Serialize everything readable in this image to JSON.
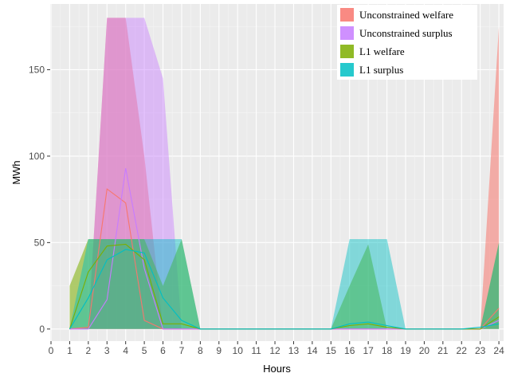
{
  "chart_data": {
    "type": "area",
    "xlabel": "Hours",
    "ylabel": "MWh",
    "xlim": [
      0,
      24
    ],
    "ylim": [
      -7,
      188
    ],
    "x_ticks": [
      0,
      1,
      2,
      3,
      4,
      5,
      6,
      7,
      8,
      9,
      10,
      11,
      12,
      13,
      14,
      15,
      16,
      17,
      18,
      19,
      20,
      21,
      22,
      23,
      24
    ],
    "y_ticks": [
      0,
      50,
      100,
      150
    ],
    "grid": true,
    "legend_position": "top-right",
    "series": [
      {
        "name": "Unconstrained welfare",
        "color": "#f8766d",
        "x": [
          1,
          2,
          3,
          4,
          5,
          6,
          7,
          8,
          9,
          10,
          11,
          12,
          13,
          14,
          15,
          16,
          17,
          18,
          19,
          20,
          21,
          22,
          23,
          24
        ],
        "band_upper": [
          0,
          1,
          180,
          180,
          100,
          0,
          0,
          0,
          0,
          0,
          0,
          0,
          0,
          0,
          0,
          0,
          0,
          0,
          0,
          0,
          0,
          0,
          0,
          175
        ],
        "band_lower": [
          0,
          0,
          0,
          0,
          0,
          0,
          0,
          0,
          0,
          0,
          0,
          0,
          0,
          0,
          0,
          0,
          0,
          0,
          0,
          0,
          0,
          0,
          0,
          0
        ],
        "line": [
          0,
          1,
          81,
          73,
          5,
          0,
          0,
          0,
          0,
          0,
          0,
          0,
          0,
          0,
          0,
          0,
          0,
          0,
          0,
          0,
          0,
          0,
          0,
          12
        ]
      },
      {
        "name": "Unconstrained surplus",
        "color": "#c77cff",
        "x": [
          1,
          2,
          3,
          4,
          5,
          6,
          7,
          8,
          9,
          10,
          11,
          12,
          13,
          14,
          15,
          16,
          17,
          18,
          19,
          20,
          21,
          22,
          23,
          24
        ],
        "band_upper": [
          0,
          1,
          180,
          180,
          180,
          145,
          0,
          0,
          0,
          0,
          0,
          0,
          0,
          0,
          0,
          0,
          0,
          0,
          0,
          0,
          0,
          0,
          0,
          0
        ],
        "band_lower": [
          0,
          0,
          0,
          0,
          0,
          0,
          0,
          0,
          0,
          0,
          0,
          0,
          0,
          0,
          0,
          0,
          0,
          0,
          0,
          0,
          0,
          0,
          0,
          0
        ],
        "line": [
          0,
          0,
          17,
          93,
          35,
          0,
          0,
          0,
          0,
          0,
          0,
          0,
          0,
          0,
          0,
          0,
          0,
          0,
          0,
          0,
          0,
          0,
          0,
          5
        ]
      },
      {
        "name": "L1 welfare",
        "color": "#7cae00",
        "x": [
          1,
          2,
          3,
          4,
          5,
          6,
          7,
          8,
          9,
          10,
          11,
          12,
          13,
          14,
          15,
          16,
          17,
          18,
          19,
          20,
          21,
          22,
          23,
          24
        ],
        "band_upper": [
          25,
          52,
          52,
          52,
          52,
          25,
          52,
          0,
          0,
          0,
          0,
          0,
          0,
          0,
          0,
          25,
          49,
          0,
          0,
          0,
          0,
          0,
          0,
          50
        ],
        "band_lower": [
          0,
          0,
          0,
          0,
          0,
          0,
          0,
          0,
          0,
          0,
          0,
          0,
          0,
          0,
          0,
          0,
          0,
          0,
          0,
          0,
          0,
          0,
          0,
          0
        ],
        "line": [
          0,
          33,
          48,
          49,
          40,
          3,
          3,
          0,
          0,
          0,
          0,
          0,
          0,
          0,
          0,
          2,
          3,
          1,
          0,
          0,
          0,
          0,
          0,
          7
        ]
      },
      {
        "name": "L1 surplus",
        "color": "#00bfc4",
        "x": [
          1,
          2,
          3,
          4,
          5,
          6,
          7,
          8,
          9,
          10,
          11,
          12,
          13,
          14,
          15,
          16,
          17,
          18,
          19,
          20,
          21,
          22,
          23,
          24
        ],
        "band_upper": [
          0,
          52,
          52,
          52,
          52,
          52,
          52,
          0,
          0,
          0,
          0,
          0,
          0,
          0,
          0,
          52,
          52,
          52,
          0,
          0,
          0,
          0,
          0,
          50
        ],
        "band_lower": [
          0,
          0,
          0,
          0,
          0,
          0,
          0,
          0,
          0,
          0,
          0,
          0,
          0,
          0,
          0,
          0,
          0,
          0,
          0,
          0,
          0,
          0,
          0,
          0
        ],
        "line": [
          0,
          18,
          40,
          46,
          44,
          18,
          5,
          0,
          0,
          0,
          0,
          0,
          0,
          0,
          0,
          3,
          4,
          2,
          0,
          0,
          0,
          0,
          1,
          3
        ]
      }
    ]
  }
}
